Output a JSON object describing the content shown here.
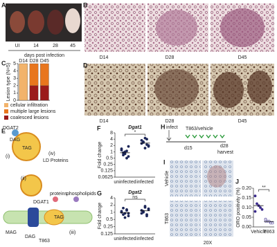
{
  "panel_labels": [
    "A",
    "B",
    "C",
    "D",
    "E",
    "F",
    "G",
    "H",
    "I",
    "J"
  ],
  "panel_a": {
    "lane_labels": [
      "UI",
      "14",
      "28",
      "45"
    ],
    "axis_label": "days post infection"
  },
  "panel_b": {
    "labels": [
      "D14",
      "D28",
      "D45"
    ]
  },
  "panel_d": {
    "labels": [
      "D14",
      "D28",
      "D45"
    ]
  },
  "panel_e": {
    "labels": [
      "DAG",
      "DGAT2",
      "TAG",
      "LD Proteins",
      "(iv)",
      "(i)",
      "DGAT1",
      "TAG",
      "proteins",
      "phospholipids",
      "MAG",
      "DAG",
      "T863",
      "(ii)",
      "(iii)"
    ]
  },
  "panel_h": {
    "infect": "infect",
    "treatment": "T863/vehicle",
    "day_start": "d15",
    "day_end": "d28",
    "harvest": "harvest"
  },
  "panel_i": {
    "rows": [
      "Vehicle",
      "T863"
    ],
    "magnification": "20X"
  },
  "chart_data": [
    {
      "type": "bar",
      "stacked": true,
      "ylabel": "Lesion type (N=5)",
      "categories": [
        "D14",
        "D28",
        "D45"
      ],
      "series": [
        {
          "name": "cellular infiltration",
          "color": "#f2b36b",
          "values": [
            5,
            0,
            0
          ]
        },
        {
          "name": "multiple large lesions",
          "color": "#e8761e",
          "values": [
            0,
            3,
            3
          ]
        },
        {
          "name": "coalesced lesions",
          "color": "#9b1b1b",
          "values": [
            0,
            2,
            2
          ]
        }
      ],
      "ylim": [
        0,
        5
      ],
      "yticks": [
        0,
        1,
        2,
        3,
        4,
        5
      ]
    },
    {
      "type": "strip",
      "title": "Dgat1",
      "ylabel": "Fold change",
      "log_scale": true,
      "categories": [
        "uninfected",
        "infected"
      ],
      "color": "#1c2658",
      "values": [
        [
          1.2,
          0.9,
          0.8,
          1.1,
          0.6,
          1.4,
          0.7,
          1.0,
          0.5,
          1.8
        ],
        [
          2.5,
          3.0,
          4.5,
          2.2,
          1.8,
          3.5,
          2.8,
          1.5,
          4.0,
          2.0
        ]
      ],
      "means": [
        0.9,
        2.6
      ],
      "annotation": "*",
      "ylim": [
        0.0625,
        8
      ],
      "yticks": [
        0.0625,
        0.125,
        0.25,
        0.5,
        1,
        2,
        4,
        8
      ]
    },
    {
      "type": "strip",
      "title": "Dgat2",
      "ylabel": "Fold change",
      "log_scale": true,
      "categories": [
        "uninfected",
        "infected"
      ],
      "color": "#1c2658",
      "values": [
        [
          1.1,
          0.8,
          0.9,
          1.3,
          0.7,
          1.0,
          1.5,
          0.6,
          1.2,
          0.9
        ],
        [
          1.2,
          1.0,
          1.6,
          0.8,
          1.4,
          0.9,
          1.1,
          1.8,
          0.7,
          1.3
        ]
      ],
      "means": [
        0.95,
        1.15
      ],
      "annotation": "ns",
      "ylim": [
        0.125,
        4
      ],
      "yticks": [
        0.125,
        0.25,
        0.5,
        1,
        2,
        4
      ]
    },
    {
      "type": "strip",
      "ylabel": "ORO positivity (%)",
      "log_scale": false,
      "categories": [
        "Vehicle",
        "T863"
      ],
      "color": "#3a2a8c",
      "values": [
        [
          0.16,
          0.12,
          0.11,
          0.1,
          0.09,
          0.08
        ],
        [
          0.04,
          0.03,
          0.03,
          0.02,
          0.02,
          0.03
        ]
      ],
      "means": [
        0.11,
        0.028
      ],
      "annotation": "**",
      "ylim": [
        0,
        0.2
      ],
      "yticks": [
        {
          "value": 0,
          "label": "0.00"
        },
        {
          "value": 0.05,
          "label": "0.05"
        },
        {
          "value": 0.1,
          "label": "0.10"
        },
        {
          "value": 0.15,
          "label": "0.15"
        },
        {
          "value": 0.2,
          "label": "0.20"
        }
      ]
    }
  ]
}
